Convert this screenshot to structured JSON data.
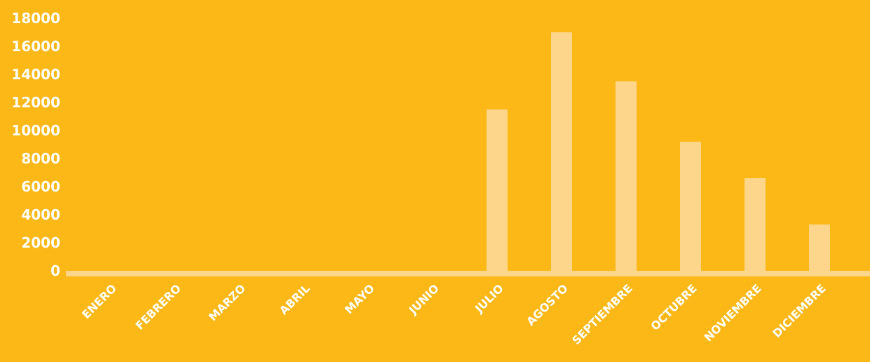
{
  "colors": {
    "background": "#FBB817",
    "bar": "#FDD68B",
    "axis": "#FDD68B",
    "text": "#FFFFFF"
  },
  "chart_data": {
    "type": "bar",
    "title": "",
    "xlabel": "",
    "ylabel": "",
    "ylim": [
      0,
      18000
    ],
    "yticks": [
      0,
      2000,
      4000,
      6000,
      8000,
      10000,
      12000,
      14000,
      16000,
      18000
    ],
    "ytick_labels": [
      "0",
      "2000",
      "4000",
      "6000",
      "8000",
      "10000",
      "12000",
      "14000",
      "16000",
      "18000"
    ],
    "categories": [
      "ENERO",
      "FEBRERO",
      "MARZO",
      "ABRIL",
      "MAYO",
      "JUNIO",
      "JULIO",
      "AGOSTO",
      "SEPTIEMBRE",
      "OCTUBRE",
      "NOVIEMBRE",
      "DICIEMBRE"
    ],
    "values": [
      0,
      0,
      0,
      0,
      0,
      0,
      11500,
      17000,
      13500,
      9200,
      6600,
      3300
    ],
    "grid": false,
    "legend": "none"
  }
}
